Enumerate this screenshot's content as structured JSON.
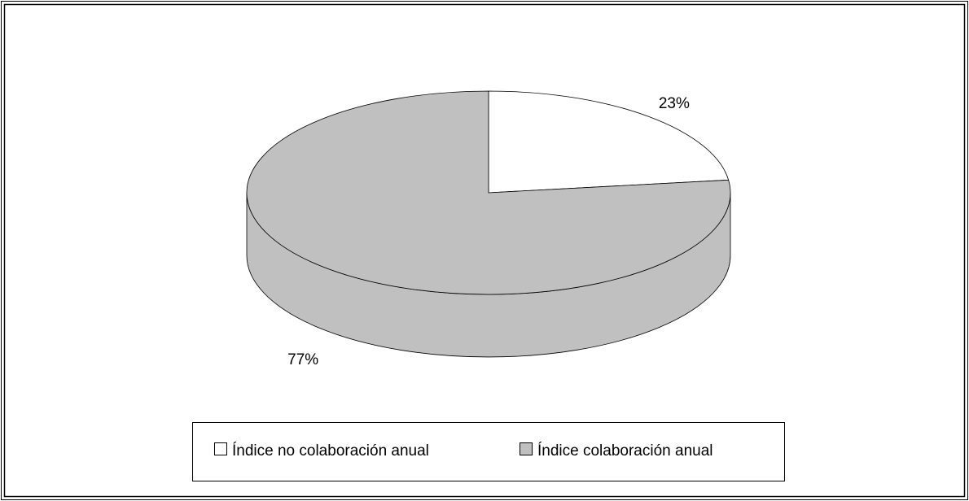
{
  "chart_data": {
    "type": "pie3d",
    "categories": [
      "Índice no colaboración anual",
      "Índice colaboración anual"
    ],
    "values": [
      23,
      77
    ],
    "value_labels": [
      "23%",
      "77%"
    ],
    "colors": [
      "#ffffff",
      "#c0c0c0"
    ],
    "legend": "bottom"
  }
}
